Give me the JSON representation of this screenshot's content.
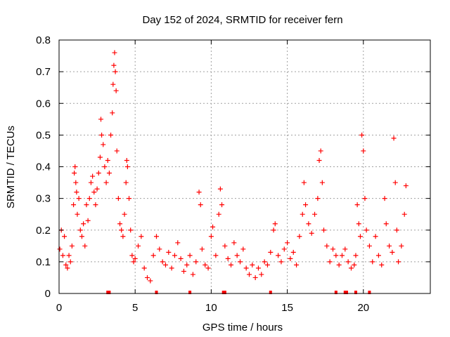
{
  "chart_data": {
    "type": "scatter",
    "title": "Day 152 of 2024, SRMTID for receiver fern",
    "xlabel": "GPS time / hours",
    "ylabel": "SRMTID / TECUs",
    "xlim": [
      0,
      24.4
    ],
    "ylim": [
      0,
      0.8
    ],
    "x_ticks": [
      0,
      5,
      10,
      15,
      20
    ],
    "x_tick_labels": [
      "0",
      "5",
      "10",
      "15",
      "20"
    ],
    "y_ticks": [
      0,
      0.1,
      0.2,
      0.3,
      0.4,
      0.5,
      0.6,
      0.7,
      0.8
    ],
    "y_tick_labels": [
      "0",
      "0.1",
      "0.2",
      "0.3",
      "0.4",
      "0.5",
      "0.6",
      "0.7",
      "0.8"
    ],
    "grid": true,
    "marker": "plus",
    "series_color": "#ff0000",
    "data_gap_markers_x": [
      3.2,
      3.3,
      6.4,
      8.6,
      10.8,
      10.9,
      13.9,
      18.2,
      18.8,
      18.9,
      19.5,
      20.4
    ],
    "series": [
      {
        "name": "SRMTID",
        "points": [
          [
            0.05,
            0.14
          ],
          [
            0.15,
            0.2
          ],
          [
            0.25,
            0.12
          ],
          [
            0.35,
            0.18
          ],
          [
            0.45,
            0.09
          ],
          [
            0.55,
            0.08
          ],
          [
            0.65,
            0.12
          ],
          [
            0.75,
            0.1
          ],
          [
            0.85,
            0.15
          ],
          [
            0.95,
            0.28
          ],
          [
            1.0,
            0.38
          ],
          [
            1.05,
            0.4
          ],
          [
            1.1,
            0.35
          ],
          [
            1.15,
            0.32
          ],
          [
            1.2,
            0.25
          ],
          [
            1.3,
            0.3
          ],
          [
            1.4,
            0.2
          ],
          [
            1.5,
            0.18
          ],
          [
            1.6,
            0.22
          ],
          [
            1.7,
            0.15
          ],
          [
            1.8,
            0.28
          ],
          [
            1.9,
            0.23
          ],
          [
            2.0,
            0.3
          ],
          [
            2.1,
            0.35
          ],
          [
            2.2,
            0.37
          ],
          [
            2.3,
            0.32
          ],
          [
            2.4,
            0.28
          ],
          [
            2.5,
            0.33
          ],
          [
            2.6,
            0.38
          ],
          [
            2.7,
            0.43
          ],
          [
            2.75,
            0.55
          ],
          [
            2.8,
            0.5
          ],
          [
            2.9,
            0.47
          ],
          [
            3.0,
            0.4
          ],
          [
            3.1,
            0.35
          ],
          [
            3.2,
            0.42
          ],
          [
            3.3,
            0.38
          ],
          [
            3.4,
            0.5
          ],
          [
            3.5,
            0.57
          ],
          [
            3.55,
            0.66
          ],
          [
            3.6,
            0.72
          ],
          [
            3.65,
            0.76
          ],
          [
            3.7,
            0.7
          ],
          [
            3.75,
            0.64
          ],
          [
            3.8,
            0.45
          ],
          [
            3.9,
            0.3
          ],
          [
            4.0,
            0.22
          ],
          [
            4.1,
            0.2
          ],
          [
            4.2,
            0.18
          ],
          [
            4.3,
            0.25
          ],
          [
            4.4,
            0.35
          ],
          [
            4.45,
            0.42
          ],
          [
            4.5,
            0.4
          ],
          [
            4.6,
            0.3
          ],
          [
            4.7,
            0.2
          ],
          [
            4.8,
            0.12
          ],
          [
            4.9,
            0.1
          ],
          [
            5.0,
            0.11
          ],
          [
            5.2,
            0.15
          ],
          [
            5.4,
            0.18
          ],
          [
            5.6,
            0.08
          ],
          [
            5.8,
            0.05
          ],
          [
            6.0,
            0.04
          ],
          [
            6.2,
            0.12
          ],
          [
            6.4,
            0.18
          ],
          [
            6.6,
            0.14
          ],
          [
            6.8,
            0.1
          ],
          [
            7.0,
            0.09
          ],
          [
            7.2,
            0.13
          ],
          [
            7.4,
            0.08
          ],
          [
            7.6,
            0.12
          ],
          [
            7.8,
            0.16
          ],
          [
            8.0,
            0.11
          ],
          [
            8.2,
            0.07
          ],
          [
            8.4,
            0.09
          ],
          [
            8.6,
            0.12
          ],
          [
            8.8,
            0.06
          ],
          [
            9.0,
            0.1
          ],
          [
            9.2,
            0.32
          ],
          [
            9.3,
            0.28
          ],
          [
            9.4,
            0.14
          ],
          [
            9.6,
            0.09
          ],
          [
            9.8,
            0.08
          ],
          [
            10.0,
            0.18
          ],
          [
            10.1,
            0.21
          ],
          [
            10.3,
            0.12
          ],
          [
            10.5,
            0.25
          ],
          [
            10.6,
            0.33
          ],
          [
            10.7,
            0.28
          ],
          [
            10.9,
            0.15
          ],
          [
            11.1,
            0.11
          ],
          [
            11.3,
            0.09
          ],
          [
            11.5,
            0.16
          ],
          [
            11.7,
            0.12
          ],
          [
            11.9,
            0.1
          ],
          [
            12.1,
            0.14
          ],
          [
            12.3,
            0.08
          ],
          [
            12.5,
            0.06
          ],
          [
            12.7,
            0.09
          ],
          [
            12.9,
            0.05
          ],
          [
            13.1,
            0.08
          ],
          [
            13.3,
            0.06
          ],
          [
            13.5,
            0.1
          ],
          [
            13.7,
            0.09
          ],
          [
            13.9,
            0.13
          ],
          [
            14.1,
            0.2
          ],
          [
            14.2,
            0.22
          ],
          [
            14.4,
            0.12
          ],
          [
            14.6,
            0.1
          ],
          [
            14.8,
            0.14
          ],
          [
            15.0,
            0.16
          ],
          [
            15.2,
            0.11
          ],
          [
            15.4,
            0.13
          ],
          [
            15.6,
            0.09
          ],
          [
            15.8,
            0.18
          ],
          [
            16.0,
            0.25
          ],
          [
            16.1,
            0.35
          ],
          [
            16.2,
            0.28
          ],
          [
            16.4,
            0.22
          ],
          [
            16.6,
            0.19
          ],
          [
            16.8,
            0.25
          ],
          [
            17.0,
            0.3
          ],
          [
            17.1,
            0.42
          ],
          [
            17.2,
            0.45
          ],
          [
            17.3,
            0.35
          ],
          [
            17.4,
            0.2
          ],
          [
            17.6,
            0.15
          ],
          [
            17.8,
            0.1
          ],
          [
            18.0,
            0.14
          ],
          [
            18.2,
            0.12
          ],
          [
            18.4,
            0.09
          ],
          [
            18.6,
            0.12
          ],
          [
            18.8,
            0.14
          ],
          [
            19.0,
            0.1
          ],
          [
            19.2,
            0.08
          ],
          [
            19.4,
            0.09
          ],
          [
            19.5,
            0.12
          ],
          [
            19.6,
            0.28
          ],
          [
            19.7,
            0.22
          ],
          [
            19.8,
            0.18
          ],
          [
            19.9,
            0.5
          ],
          [
            20.0,
            0.45
          ],
          [
            20.1,
            0.3
          ],
          [
            20.2,
            0.2
          ],
          [
            20.4,
            0.15
          ],
          [
            20.6,
            0.1
          ],
          [
            20.8,
            0.18
          ],
          [
            21.0,
            0.12
          ],
          [
            21.2,
            0.09
          ],
          [
            21.4,
            0.3
          ],
          [
            21.5,
            0.22
          ],
          [
            21.7,
            0.15
          ],
          [
            21.9,
            0.13
          ],
          [
            22.0,
            0.49
          ],
          [
            22.1,
            0.35
          ],
          [
            22.2,
            0.2
          ],
          [
            22.3,
            0.1
          ],
          [
            22.5,
            0.15
          ],
          [
            22.7,
            0.25
          ],
          [
            22.8,
            0.34
          ]
        ]
      }
    ]
  }
}
